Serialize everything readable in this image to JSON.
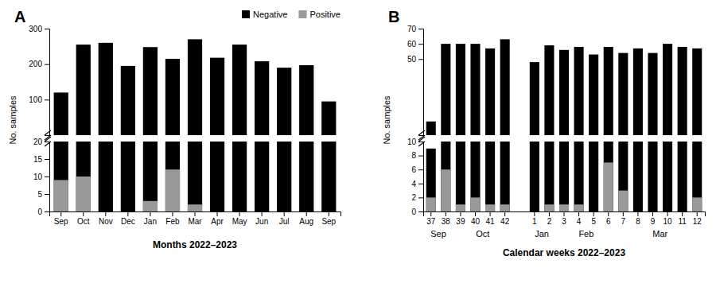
{
  "chart_data": [
    {
      "type": "bar",
      "title": "A",
      "ylabel": "No. samples",
      "categories": [
        "Sep",
        "Oct",
        "Nov",
        "Dec",
        "Jan",
        "Feb",
        "Mar",
        "Apr",
        "May",
        "Jun",
        "Jul",
        "Aug",
        "Sep"
      ],
      "series": [
        {
          "name": "Negative",
          "color": "#000000",
          "values": [
            120,
            255,
            260,
            195,
            248,
            215,
            270,
            218,
            255,
            208,
            190,
            197,
            95
          ]
        }
      ],
      "ylim": [
        0,
        300
      ],
      "yticks": [
        100,
        200,
        300
      ],
      "tick_labels": "y",
      "legend": "upper right"
    },
    {
      "type": "bar",
      "xlabel": "Months 2022–2023",
      "categories": [
        "Sep",
        "Oct",
        "Nov",
        "Dec",
        "Jan",
        "Feb",
        "Mar",
        "Apr",
        "May",
        "Jun",
        "Jul",
        "Aug",
        "Sep"
      ],
      "series": [
        {
          "name": "Positive",
          "color": "#999999",
          "values": [
            9,
            10,
            0,
            0,
            3,
            12,
            2,
            0,
            0,
            0,
            0,
            0,
            0
          ]
        }
      ],
      "ylim": [
        0,
        20
      ],
      "yticks": [
        0,
        5,
        10,
        15,
        20
      ]
    },
    {
      "type": "bar",
      "title": "B",
      "ylabel": "No. samples",
      "categories": [
        "37",
        "38",
        "39",
        "40",
        "41",
        "42",
        null,
        "1",
        "2",
        "3",
        "4",
        "5",
        "6",
        "7",
        "8",
        "9",
        "10",
        "11",
        "12"
      ],
      "series": [
        {
          "name": "Negative",
          "color": "#000000",
          "values": [
            9,
            60,
            60,
            60,
            57,
            63,
            null,
            48,
            59,
            56,
            58,
            53,
            58,
            54,
            57,
            54,
            60,
            58,
            57
          ]
        }
      ],
      "ylim": [
        0,
        70
      ],
      "yticks": [
        50,
        60,
        70
      ],
      "tick_labels": "y"
    },
    {
      "type": "bar",
      "xlabel": "Calendar weeks 2022–2023",
      "categories": [
        "37",
        "38",
        "39",
        "40",
        "41",
        "42",
        null,
        "1",
        "2",
        "3",
        "4",
        "5",
        "6",
        "7",
        "8",
        "9",
        "10",
        "11",
        "12"
      ],
      "series": [
        {
          "name": "Positive",
          "color": "#999999",
          "values": [
            2,
            6,
            1,
            2,
            1,
            1,
            null,
            0,
            1,
            1,
            1,
            0,
            7,
            3,
            0,
            0,
            0,
            0,
            2
          ]
        }
      ],
      "ylim": [
        0,
        10
      ],
      "yticks": [
        0,
        2,
        4,
        6,
        8,
        10
      ],
      "annotations": [
        {
          "text": "Sep",
          "from": "37",
          "to": "38"
        },
        {
          "text": "Oct",
          "from": "39",
          "to": "42"
        },
        {
          "text": "Jan",
          "from": "1",
          "to": "2"
        },
        {
          "text": "Feb",
          "from": "3",
          "to": "6"
        },
        {
          "text": "Mar",
          "from": "7",
          "to": "12"
        }
      ]
    }
  ]
}
